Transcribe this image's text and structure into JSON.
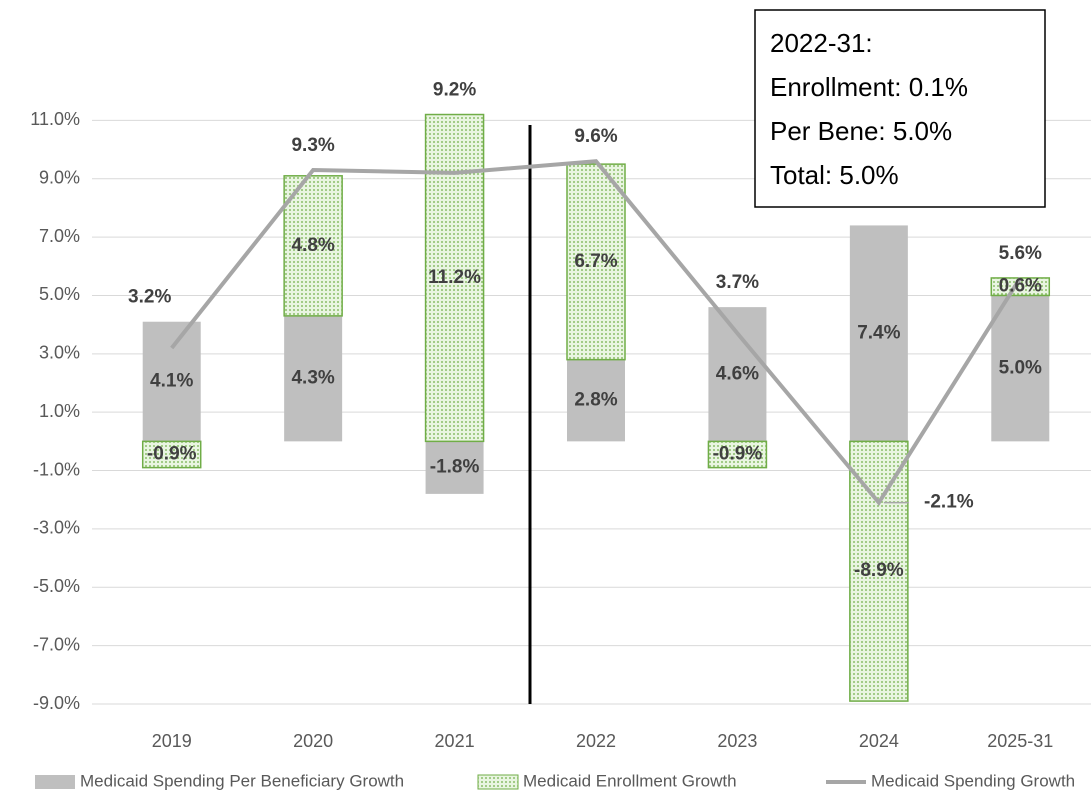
{
  "chart_data": {
    "type": "bar",
    "stacked": true,
    "categories": [
      "2019",
      "2020",
      "2021",
      "2022",
      "2023",
      "2024",
      "2025-31"
    ],
    "series": [
      {
        "name": "Medicaid Spending Per Beneficiary Growth",
        "color": "#bfbfbf",
        "values": [
          4.1,
          4.3,
          -1.8,
          2.8,
          4.6,
          7.4,
          5.0
        ],
        "value_labels": [
          "4.1%",
          "4.3%",
          "-1.8%",
          "2.8%",
          "4.6%",
          "7.4%",
          "5.0%"
        ]
      },
      {
        "name": "Medicaid Enrollment Growth",
        "color": "#70ad47",
        "pattern": "dots",
        "values": [
          -0.9,
          4.8,
          11.2,
          6.7,
          -0.9,
          -8.9,
          0.6
        ],
        "value_labels": [
          "-0.9%",
          "4.8%",
          "11.2%",
          "6.7%",
          "-0.9%",
          "-8.9%",
          "0.6%"
        ]
      },
      {
        "name": "Medicaid Spending Growth",
        "type": "line",
        "color": "#a6a6a6",
        "values": [
          3.2,
          9.3,
          9.2,
          9.6,
          3.7,
          -2.1,
          5.6
        ],
        "value_labels": [
          "3.2%",
          "9.3%",
          "9.2%",
          "9.6%",
          "3.7%",
          "-2.1%",
          "5.6%"
        ]
      }
    ],
    "ylim": [
      -9,
      13
    ],
    "yticks": [
      {
        "value": -9,
        "label": "-9.0%"
      },
      {
        "value": -7,
        "label": "-7.0%"
      },
      {
        "value": -5,
        "label": "-5.0%"
      },
      {
        "value": -3,
        "label": "-3.0%"
      },
      {
        "value": -1,
        "label": "-1.0%"
      },
      {
        "value": 1,
        "label": "1.0%"
      },
      {
        "value": 3,
        "label": "3.0%"
      },
      {
        "value": 5,
        "label": "5.0%"
      },
      {
        "value": 7,
        "label": "7.0%"
      },
      {
        "value": 9,
        "label": "9.0%"
      },
      {
        "value": 11,
        "label": "11.0%"
      }
    ],
    "grid": true,
    "legend": "bottom",
    "annotation": [
      "2022-31:",
      "Enrollment: 0.1%",
      "Per Bene: 5.0%",
      "Total: 5.0%"
    ]
  }
}
